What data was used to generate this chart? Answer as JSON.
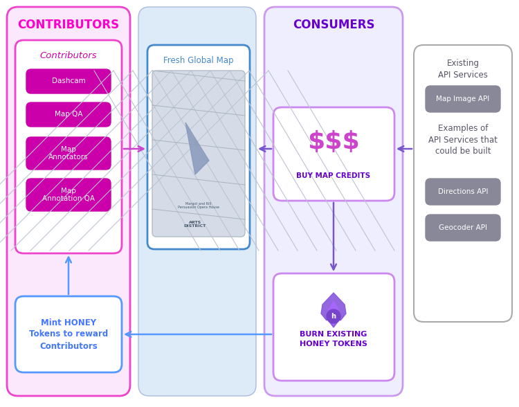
{
  "bg_color": "#ffffff",
  "contributors_bg": "#fce8fc",
  "consumers_bg": "#eeeefc",
  "map_panel_bg": "#dde8f8",
  "pink_border": "#ee44cc",
  "consumer_border": "#cc99ee",
  "map_border": "#88aacc",
  "white": "#ffffff",
  "pink_header": "#ff00cc",
  "purple_header": "#6600cc",
  "magenta_btn": "#cc00aa",
  "gray_btn": "#7a7a8a",
  "blue_text": "#4477ff",
  "purple_text": "#6633cc",
  "map_arrow_color": "#cc44cc",
  "burn_arrow_color": "#7755cc",
  "mint_arrow_color": "#5599ff",
  "title_contributors": "CONTRIBUTORS",
  "title_consumers": "CONSUMERS",
  "contributors_label": "Contributors",
  "contributor_items": [
    "Dashcam",
    "Map QA",
    "Map\nAnnotators",
    "Map\nAnnotation QA"
  ],
  "fresh_map_label": "Fresh Global Map",
  "buy_dollar": "$$$",
  "buy_label": "BUY MAP CREDITS",
  "mint_label": "Mint HONEY\nTokens to reward\nContributors",
  "burn_label": "BURN EXISTING\nHONEY TOKENS",
  "existing_api_title": "Existing\nAPI Services",
  "map_image_api": "Map Image API",
  "examples_api_title": "Examples of\nAPI Services that\ncould be built",
  "directions_api": "Directions API",
  "geocoder_api": "Geocoder API"
}
